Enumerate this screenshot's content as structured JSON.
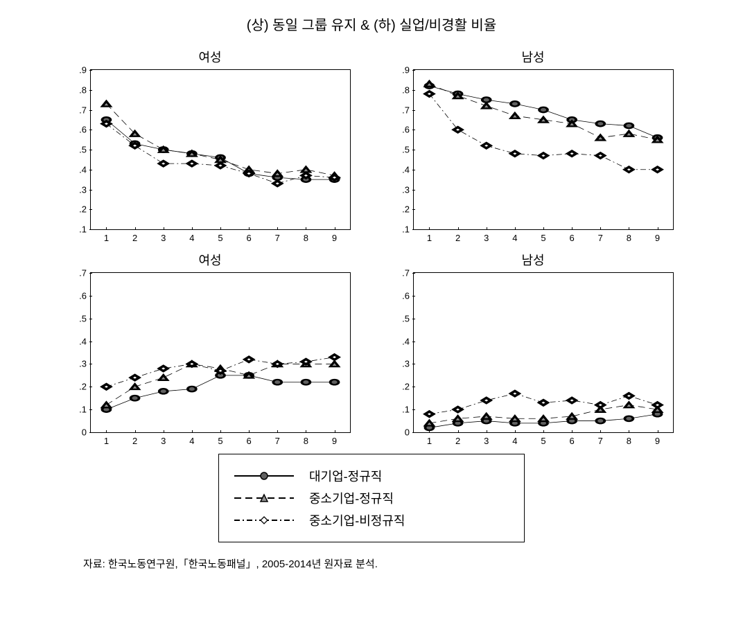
{
  "main_title": "(상) 동일 그룹 유지 & (하) 실업/비경활 비율",
  "colors": {
    "line": "#000000",
    "marker_fill_circle": "#606060",
    "marker_fill_triangle": "#909090",
    "marker_fill_diamond": "#ffffff",
    "background": "#ffffff"
  },
  "x_values": [
    1,
    2,
    3,
    4,
    5,
    6,
    7,
    8,
    9
  ],
  "legend": [
    {
      "label": "대기업-정규직",
      "style": "solid",
      "marker": "circle"
    },
    {
      "label": "중소기업-정규직",
      "style": "dash",
      "marker": "triangle"
    },
    {
      "label": "중소기업-비정규직",
      "style": "dashdot",
      "marker": "diamond"
    }
  ],
  "panels": [
    {
      "title": "여성",
      "ylim": [
        0.1,
        0.9
      ],
      "yticks": [
        ".1",
        ".2",
        ".3",
        ".4",
        ".5",
        ".6",
        ".7",
        ".8",
        ".9"
      ],
      "ytick_vals": [
        0.1,
        0.2,
        0.3,
        0.4,
        0.5,
        0.6,
        0.7,
        0.8,
        0.9
      ],
      "series": [
        {
          "style": "solid",
          "marker": "circle",
          "y": [
            0.65,
            0.53,
            0.5,
            0.48,
            0.46,
            0.38,
            0.36,
            0.35,
            0.35
          ]
        },
        {
          "style": "dash",
          "marker": "triangle",
          "y": [
            0.73,
            0.58,
            0.5,
            0.48,
            0.45,
            0.4,
            0.38,
            0.4,
            0.37
          ]
        },
        {
          "style": "dashdot",
          "marker": "diamond",
          "y": [
            0.63,
            0.52,
            0.43,
            0.43,
            0.42,
            0.38,
            0.33,
            0.37,
            0.36
          ]
        }
      ]
    },
    {
      "title": "남성",
      "ylim": [
        0.1,
        0.9
      ],
      "yticks": [
        ".1",
        ".2",
        ".3",
        ".4",
        ".5",
        ".6",
        ".7",
        ".8",
        ".9"
      ],
      "ytick_vals": [
        0.1,
        0.2,
        0.3,
        0.4,
        0.5,
        0.6,
        0.7,
        0.8,
        0.9
      ],
      "series": [
        {
          "style": "solid",
          "marker": "circle",
          "y": [
            0.82,
            0.78,
            0.75,
            0.73,
            0.7,
            0.65,
            0.63,
            0.62,
            0.56
          ]
        },
        {
          "style": "dash",
          "marker": "triangle",
          "y": [
            0.83,
            0.77,
            0.72,
            0.67,
            0.65,
            0.63,
            0.56,
            0.58,
            0.55
          ]
        },
        {
          "style": "dashdot",
          "marker": "diamond",
          "y": [
            0.78,
            0.6,
            0.52,
            0.48,
            0.47,
            0.48,
            0.47,
            0.4,
            0.4
          ]
        }
      ]
    },
    {
      "title": "여성",
      "ylim": [
        0.0,
        0.7
      ],
      "yticks": [
        "0",
        ".1",
        ".2",
        ".3",
        ".4",
        ".5",
        ".6",
        ".7"
      ],
      "ytick_vals": [
        0.0,
        0.1,
        0.2,
        0.3,
        0.4,
        0.5,
        0.6,
        0.7
      ],
      "series": [
        {
          "style": "solid",
          "marker": "circle",
          "y": [
            0.1,
            0.15,
            0.18,
            0.19,
            0.25,
            0.25,
            0.22,
            0.22,
            0.22
          ]
        },
        {
          "style": "dash",
          "marker": "triangle",
          "y": [
            0.12,
            0.2,
            0.24,
            0.3,
            0.28,
            0.25,
            0.3,
            0.3,
            0.3
          ]
        },
        {
          "style": "dashdot",
          "marker": "diamond",
          "y": [
            0.2,
            0.24,
            0.28,
            0.3,
            0.27,
            0.32,
            0.3,
            0.31,
            0.33
          ]
        }
      ]
    },
    {
      "title": "남성",
      "ylim": [
        0.0,
        0.7
      ],
      "yticks": [
        "0",
        ".1",
        ".2",
        ".3",
        ".4",
        ".5",
        ".6",
        ".7"
      ],
      "ytick_vals": [
        0.0,
        0.1,
        0.2,
        0.3,
        0.4,
        0.5,
        0.6,
        0.7
      ],
      "series": [
        {
          "style": "solid",
          "marker": "circle",
          "y": [
            0.02,
            0.04,
            0.05,
            0.04,
            0.04,
            0.05,
            0.05,
            0.06,
            0.08
          ]
        },
        {
          "style": "dash",
          "marker": "triangle",
          "y": [
            0.04,
            0.06,
            0.07,
            0.06,
            0.06,
            0.07,
            0.1,
            0.12,
            0.1
          ]
        },
        {
          "style": "dashdot",
          "marker": "diamond",
          "y": [
            0.08,
            0.1,
            0.14,
            0.17,
            0.13,
            0.14,
            0.12,
            0.16,
            0.12
          ]
        }
      ]
    }
  ],
  "footnote": "자료: 한국노동연구원,「한국노동패널」, 2005-2014년 원자료 분석."
}
